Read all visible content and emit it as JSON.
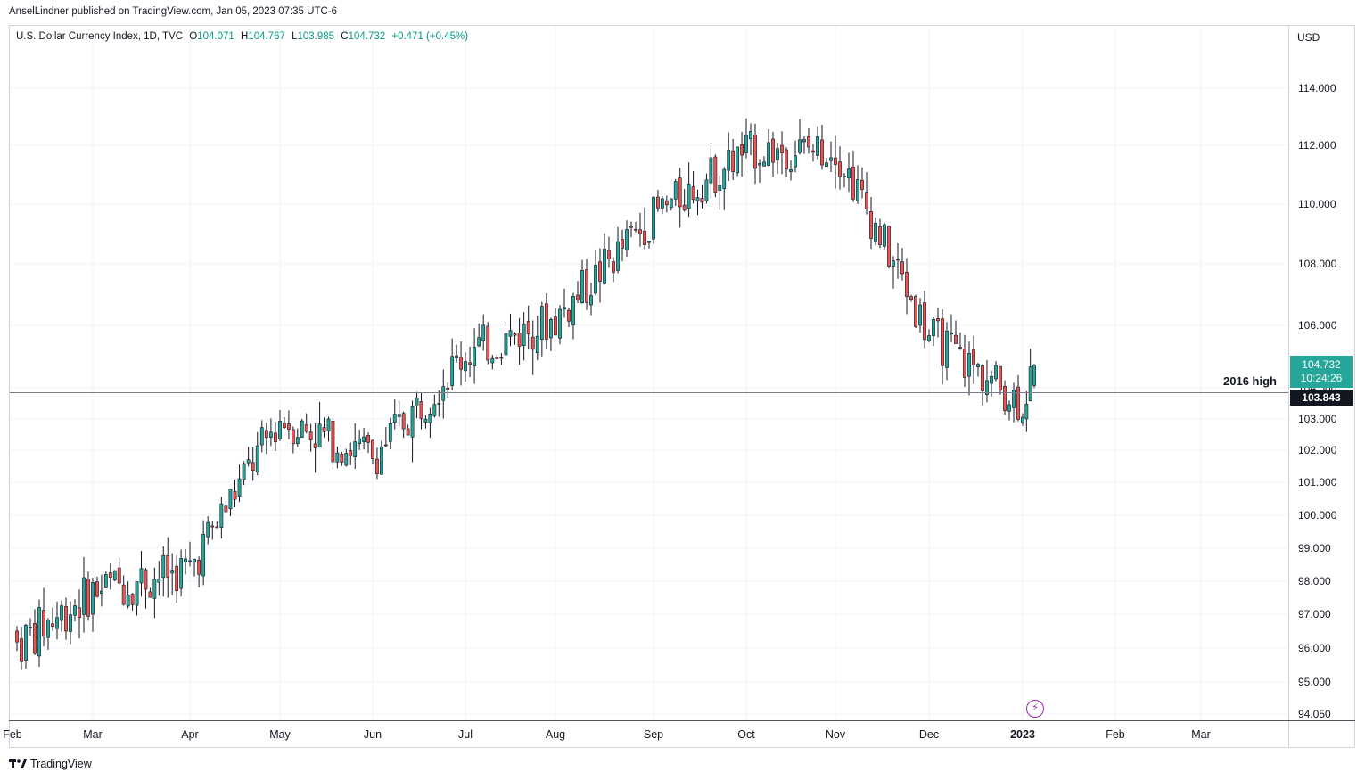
{
  "header": {
    "published_text": "AnselLindner published on TradingView.com, Jan 05, 2023 07:35 UTC-6"
  },
  "legend": {
    "symbol_text": "U.S. Dollar Currency Index, 1D, TVC",
    "open_label": "O",
    "open_value": "104.071",
    "high_label": "H",
    "high_value": "104.767",
    "low_label": "L",
    "low_value": "103.985",
    "close_label": "C",
    "close_value": "104.732",
    "change_text": "+0.471 (+0.45%)"
  },
  "currency_label": "USD",
  "badges": {
    "last_price": "104.732",
    "countdown": "10:24:26",
    "level_price": "103.843",
    "level_label": "2016 high"
  },
  "footer": {
    "brand": "TradingView"
  },
  "event_icon": "lightning-icon",
  "colors": {
    "up": "#26a69a",
    "down": "#ef5350",
    "background": "#ffffff",
    "grid": "#f0f3fa",
    "horizontal_line": "#787b86",
    "badge_dark": "#131722",
    "event": "#9c27b0"
  },
  "chart_data": {
    "type": "candlestick",
    "title": "U.S. Dollar Currency Index, 1D, TVC",
    "xlabel": "",
    "ylabel": "USD",
    "scale": "nonlinear-price-axis",
    "y_ticks": [
      "94.050",
      "95.000",
      "96.000",
      "97.000",
      "98.000",
      "99.000",
      "100.000",
      "101.000",
      "102.000",
      "103.000",
      "104.000",
      "106.000",
      "108.000",
      "110.000",
      "112.000",
      "114.000"
    ],
    "x_ticks": [
      "Feb",
      "Mar",
      "Apr",
      "May",
      "Jun",
      "Jul",
      "Aug",
      "Sep",
      "Oct",
      "Nov",
      "Dec",
      "2023",
      "Feb",
      "Mar"
    ],
    "x_ticks_bold": [
      "2023"
    ],
    "horizontal_level": {
      "value": 103.843,
      "label": "2016 high"
    },
    "last": {
      "open": 104.071,
      "high": 104.767,
      "low": 103.985,
      "close": 104.732
    },
    "close_anchors": [
      {
        "month": "Feb",
        "close": 96.0
      },
      {
        "month": "Mar",
        "close": 97.7
      },
      {
        "month": "Apr",
        "close": 98.4
      },
      {
        "month": "May",
        "close": 103.0
      },
      {
        "month": "Jun",
        "close": 101.8
      },
      {
        "month": "Jul",
        "close": 105.1
      },
      {
        "month": "Aug",
        "close": 106.2
      },
      {
        "month": "Sep",
        "close": 109.6
      },
      {
        "month": "Oct",
        "close": 111.8
      },
      {
        "month": "Nov",
        "close": 111.9
      },
      {
        "month": "Dec",
        "close": 105.7
      },
      {
        "month": "2023",
        "close": 103.5
      },
      {
        "month": "Jan 05",
        "close": 104.732
      }
    ],
    "grid": true,
    "legend": "top-left"
  }
}
